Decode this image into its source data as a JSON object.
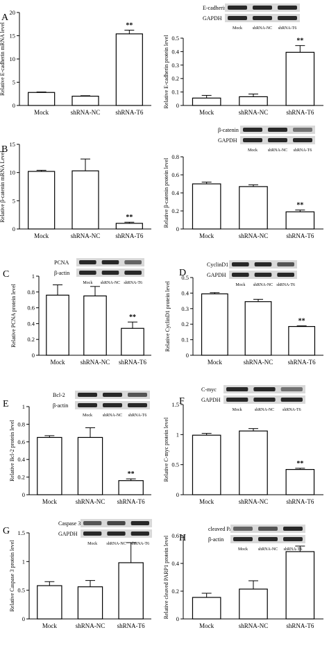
{
  "chart_data": [
    {
      "panel": "A",
      "type": "bar",
      "categories": [
        "Mock",
        "shRNA-NC",
        "shRNA-T6"
      ],
      "values": [
        2.8,
        2.0,
        15.4
      ],
      "errors": [
        0.1,
        0.1,
        0.8
      ],
      "significance": [
        "",
        "",
        "**"
      ],
      "ylabel": "Relative E-cadherin mRNA level",
      "ylim": [
        0,
        20
      ],
      "yticks": [
        0,
        5,
        10,
        15,
        20
      ],
      "blot": null
    },
    {
      "panel": "",
      "type": "bar",
      "categories": [
        "Mock",
        "shRNA-NC",
        "shRNA-T6"
      ],
      "values": [
        0.055,
        0.065,
        0.395
      ],
      "errors": [
        0.02,
        0.02,
        0.05
      ],
      "significance": [
        "",
        "",
        "**"
      ],
      "ylabel": "Relative E-cadherin protein level",
      "ylim": [
        0,
        0.5
      ],
      "yticks": [
        0.0,
        0.1,
        0.2,
        0.3,
        0.4,
        0.5
      ],
      "blot": {
        "labels": [
          "E-cadherin",
          "GAPDH"
        ],
        "lanes": [
          "Mock",
          "shRNA-NC",
          "shRNA-T6"
        ]
      }
    },
    {
      "panel": "B",
      "type": "bar",
      "categories": [
        "Mock",
        "shRNA-NC",
        "shRNA-T6"
      ],
      "values": [
        10.2,
        10.3,
        1.0
      ],
      "errors": [
        0.2,
        2.1,
        0.2
      ],
      "significance": [
        "",
        "",
        "**"
      ],
      "ylabel": "Relative β-catenin mRNA Level",
      "ylim": [
        0,
        15
      ],
      "yticks": [
        0,
        5,
        10,
        15
      ],
      "blot": null
    },
    {
      "panel": "",
      "type": "bar",
      "categories": [
        "Mock",
        "shRNA-NC",
        "shRNA-T6"
      ],
      "values": [
        0.5,
        0.47,
        0.19
      ],
      "errors": [
        0.02,
        0.02,
        0.02
      ],
      "significance": [
        "",
        "",
        "**"
      ],
      "ylabel": "Relative β-catenin protein level",
      "ylim": [
        0,
        0.8
      ],
      "yticks": [
        0.0,
        0.2,
        0.4,
        0.6,
        0.8
      ],
      "blot": {
        "labels": [
          "β-catenin",
          "GAPDH"
        ],
        "lanes": [
          "Mock",
          "shRNA-NC",
          "shRNA-T6"
        ]
      }
    },
    {
      "panel": "C",
      "type": "bar",
      "categories": [
        "Mock",
        "shRNA-NC",
        "shRNA-T6"
      ],
      "values": [
        0.76,
        0.75,
        0.34
      ],
      "errors": [
        0.13,
        0.12,
        0.08
      ],
      "significance": [
        "",
        "",
        "**"
      ],
      "ylabel": "Relative PCNA protein level",
      "ylim": [
        0,
        1.0
      ],
      "yticks": [
        0.0,
        0.2,
        0.4,
        0.6,
        0.8,
        1.0
      ],
      "blot": {
        "labels": [
          "PCNA",
          "β-actin"
        ],
        "lanes": [
          "Mock",
          "shRNA-NC",
          "shRNA-T6"
        ]
      }
    },
    {
      "panel": "D",
      "type": "bar",
      "categories": [
        "Mock",
        "shRNA-NC",
        "shRNA-T6"
      ],
      "values": [
        0.395,
        0.345,
        0.185
      ],
      "errors": [
        0.008,
        0.015,
        0.004
      ],
      "significance": [
        "",
        "",
        "**"
      ],
      "ylabel": "Relative CyclinD1 protein level",
      "ylim": [
        0,
        0.5
      ],
      "yticks": [
        0.0,
        0.1,
        0.2,
        0.3,
        0.4,
        0.5
      ],
      "blot": {
        "labels": [
          "CyclinD1",
          "GAPDH"
        ],
        "lanes": [
          "Mock",
          "shRNA-NC",
          "shRNA-T6"
        ]
      }
    },
    {
      "panel": "E",
      "type": "bar",
      "categories": [
        "Mock",
        "shRNA-NC",
        "shRNA-T6"
      ],
      "values": [
        0.65,
        0.65,
        0.16
      ],
      "errors": [
        0.02,
        0.11,
        0.02
      ],
      "significance": [
        "",
        "",
        "**"
      ],
      "ylabel": "Relative Bcl-2 protein level",
      "ylim": [
        0,
        1.0
      ],
      "yticks": [
        0.0,
        0.2,
        0.4,
        0.6,
        0.8,
        1.0
      ],
      "blot": {
        "labels": [
          "Bcl-2",
          "β-actin"
        ],
        "lanes": [
          "Mock",
          "shRNA-NC",
          "shRNA-T6"
        ]
      }
    },
    {
      "panel": "F",
      "type": "bar",
      "categories": [
        "Mock",
        "shRNA-NC",
        "shRNA-T6"
      ],
      "values": [
        0.99,
        1.06,
        0.42
      ],
      "errors": [
        0.03,
        0.04,
        0.02
      ],
      "significance": [
        "",
        "",
        "**"
      ],
      "ylabel": "Relative C-myc protein level",
      "ylim": [
        0,
        1.5
      ],
      "yticks": [
        0.0,
        0.5,
        1.0,
        1.5
      ],
      "blot": {
        "labels": [
          "C-myc",
          "GAPDH"
        ],
        "lanes": [
          "Mock",
          "shRNA-NC",
          "shRNA-T6"
        ]
      }
    },
    {
      "panel": "G",
      "type": "bar",
      "categories": [
        "Mock",
        "shRNA-NC",
        "shRNA-T6"
      ],
      "values": [
        0.58,
        0.56,
        0.98
      ],
      "errors": [
        0.07,
        0.11,
        0.35
      ],
      "significance": [
        "",
        "",
        "*"
      ],
      "ylabel": "Relative Caspase 3 protein level",
      "ylim": [
        0,
        1.5
      ],
      "yticks": [
        0.0,
        0.5,
        1.0,
        1.5
      ],
      "blot": {
        "labels": [
          "Caspase 3",
          "GAPDH"
        ],
        "lanes": [
          "Mock",
          "shRNA-NC",
          "shRNA-T6"
        ]
      }
    },
    {
      "panel": "H",
      "type": "bar",
      "categories": [
        "Mock",
        "shRNA-NC",
        "shRNA-T6"
      ],
      "values": [
        0.155,
        0.215,
        0.485
      ],
      "errors": [
        0.03,
        0.06,
        0.04
      ],
      "significance": [
        "",
        "",
        "**"
      ],
      "ylabel": "Relative cleaved PARP1 protein level",
      "ylim": [
        0,
        0.6
      ],
      "yticks": [
        0.0,
        0.2,
        0.4,
        0.6
      ],
      "blot": {
        "labels": [
          "cleaved PARP1",
          "β-actin"
        ],
        "lanes": [
          "Mock",
          "shRNA-NC",
          "shRNA-T6"
        ]
      }
    }
  ]
}
